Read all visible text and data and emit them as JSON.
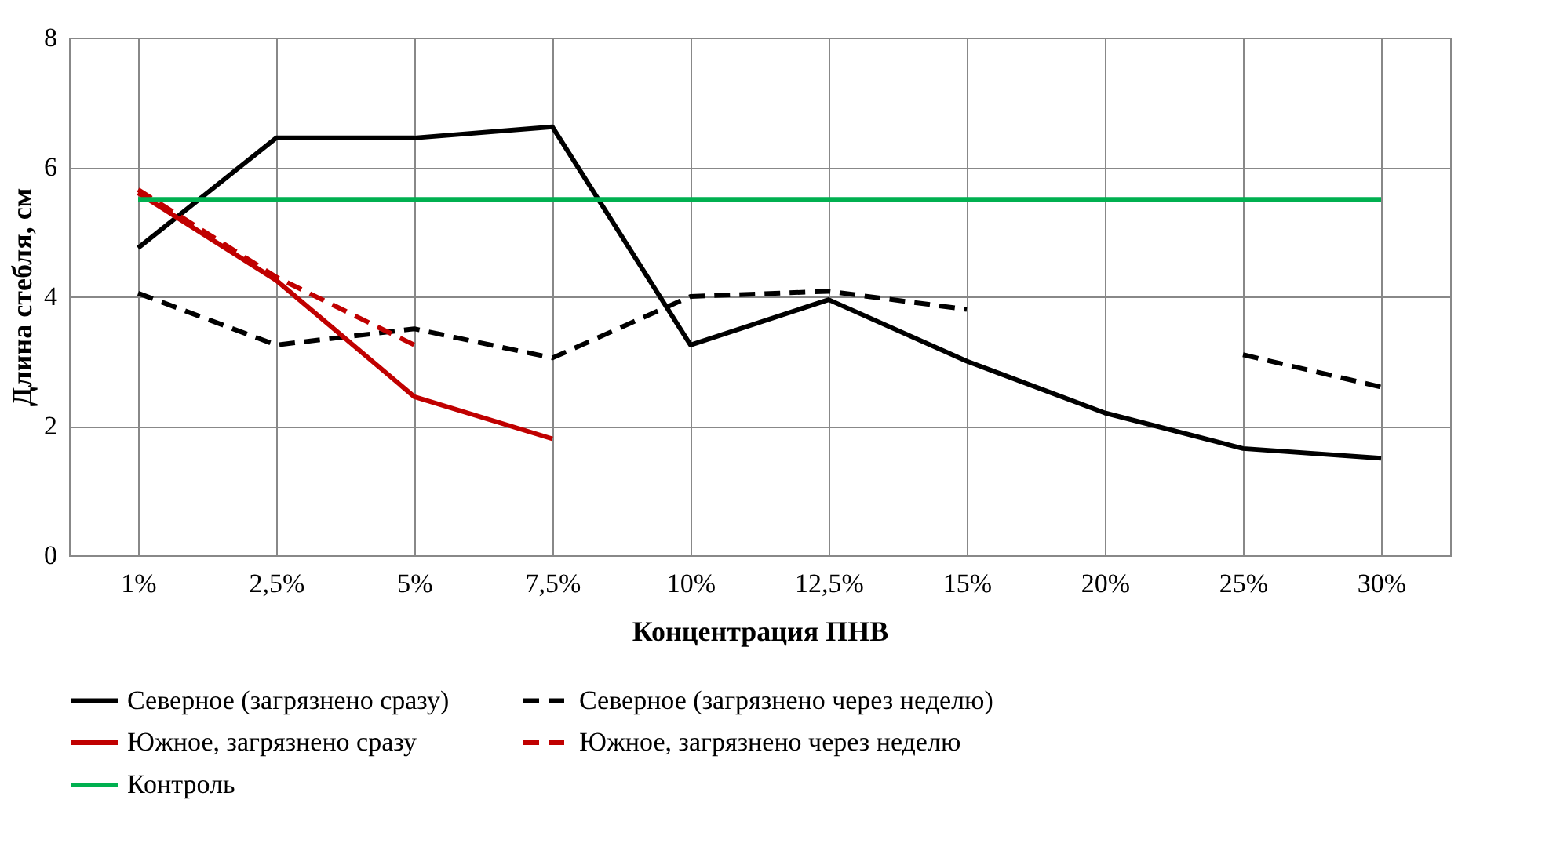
{
  "chart_data": {
    "type": "line",
    "xlabel": "Концентрация ПНВ",
    "ylabel": "Длина стебля, см",
    "categories": [
      "1%",
      "2,5%",
      "5%",
      "7,5%",
      "10%",
      "12,5%",
      "15%",
      "20%",
      "25%",
      "30%"
    ],
    "ylim": [
      0,
      8
    ],
    "yticks": [
      0,
      2,
      4,
      6,
      8
    ],
    "grid": true,
    "legend": "bottom",
    "series": [
      {
        "name": "Северное (загрязнено сразу)",
        "color": "#000000",
        "line_style": "solid",
        "values": [
          4.75,
          6.45,
          6.45,
          6.62,
          3.25,
          3.95,
          3.0,
          2.2,
          1.65,
          1.5
        ]
      },
      {
        "name": "Северное (загрязнено через неделю)",
        "color": "#000000",
        "line_style": "dashed",
        "values": [
          4.05,
          3.25,
          3.5,
          3.05,
          4.0,
          4.08,
          3.8,
          null,
          3.1,
          2.6
        ]
      },
      {
        "name": "Южное, загрязнено сразу",
        "color": "#c00000",
        "line_style": "solid",
        "values": [
          5.6,
          4.25,
          2.45,
          1.8,
          null,
          null,
          null,
          null,
          null,
          null
        ]
      },
      {
        "name": "Южное, загрязнено через неделю",
        "color": "#c00000",
        "line_style": "dashed",
        "values": [
          5.65,
          4.3,
          3.25,
          null,
          null,
          null,
          null,
          null,
          null,
          null
        ]
      },
      {
        "name": "Контроль",
        "color": "#00b050",
        "line_style": "solid",
        "values": [
          5.5,
          5.5,
          5.5,
          5.5,
          5.5,
          5.5,
          5.5,
          5.5,
          5.5,
          5.5
        ]
      }
    ]
  }
}
